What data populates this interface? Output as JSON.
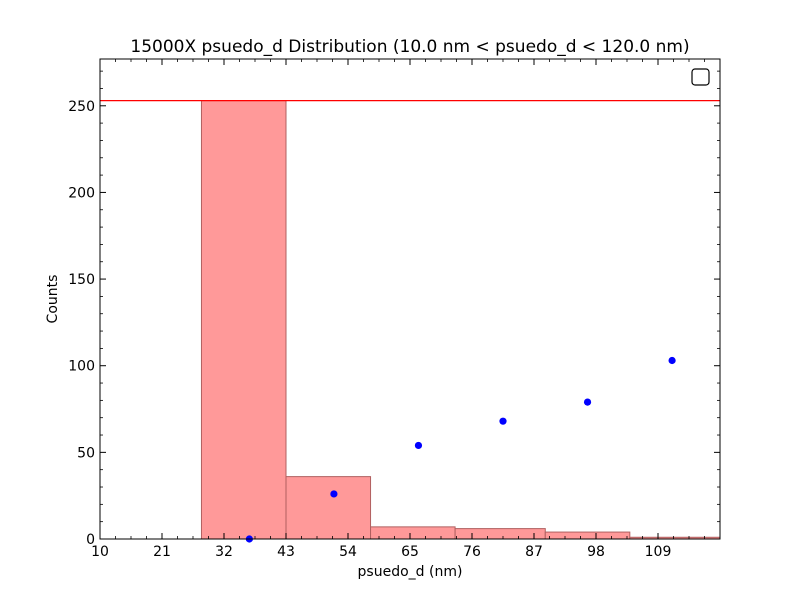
{
  "chart_data": {
    "type": "bar",
    "title": "15000X psuedo_d Distribution (10.0 nm < psuedo_d < 120.0  nm)",
    "xlabel": "psuedo_d (nm)",
    "ylabel": "Counts",
    "xlim": [
      10,
      120
    ],
    "ylim": [
      0,
      277
    ],
    "x_ticks": [
      10,
      21,
      32,
      43,
      54,
      65,
      76,
      87,
      98,
      109
    ],
    "y_ticks": [
      0,
      50,
      100,
      150,
      200,
      250
    ],
    "bins": [
      {
        "start": 10,
        "end": 13,
        "count": 0
      },
      {
        "start": 13,
        "end": 28,
        "count": 0
      },
      {
        "start": 28,
        "end": 43,
        "count": 253
      },
      {
        "start": 43,
        "end": 58,
        "count": 36
      },
      {
        "start": 58,
        "end": 73,
        "count": 7
      },
      {
        "start": 73,
        "end": 89,
        "count": 6
      },
      {
        "start": 89,
        "end": 104,
        "count": 4
      },
      {
        "start": 104,
        "end": 120,
        "count": 1
      }
    ],
    "points": [
      {
        "x": 36.5,
        "y": 0
      },
      {
        "x": 51.5,
        "y": 26
      },
      {
        "x": 66.5,
        "y": 54
      },
      {
        "x": 81.5,
        "y": 68
      },
      {
        "x": 96.5,
        "y": 79
      },
      {
        "x": 111.5,
        "y": 103
      }
    ],
    "reference_line": {
      "y": 253
    },
    "grid": false,
    "legend": {
      "position": "top-right",
      "entries": []
    },
    "colors": {
      "bar_fill": "#ff9999",
      "bar_edge": "#b06060",
      "points": "#0000ff",
      "reference_line": "#ff0000"
    }
  }
}
